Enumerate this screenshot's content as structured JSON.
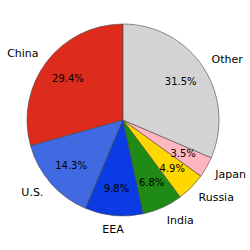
{
  "chart_data": {
    "type": "pie",
    "categories": [
      "China",
      "U.S.",
      "EEA",
      "India",
      "Russia",
      "Japan",
      "Other"
    ],
    "values": [
      29.4,
      14.3,
      9.8,
      6.8,
      4.9,
      3.5,
      31.5
    ],
    "value_labels": [
      "29.4%",
      "14.3%",
      "9.8%",
      "6.8%",
      "4.9%",
      "3.5%",
      "31.5%"
    ],
    "colors": [
      "#dd2c1c",
      "#4169e1",
      "#0a3be3",
      "#1f8a14",
      "#ffd700",
      "#ffb6c1",
      "#d3d3d3"
    ],
    "data_labels": true
  }
}
